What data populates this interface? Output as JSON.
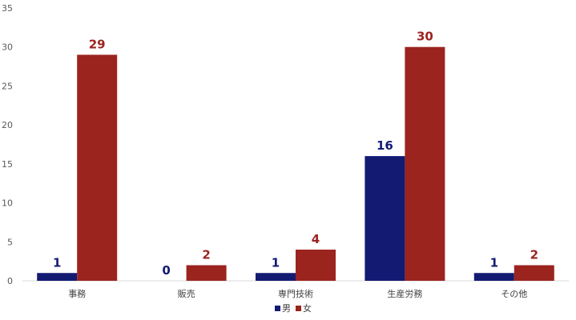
{
  "chart_data": {
    "type": "bar",
    "categories": [
      "事務",
      "販売",
      "専門技術",
      "生産労務",
      "その他"
    ],
    "series": [
      {
        "name": "男",
        "color": "#131a72",
        "values": [
          1,
          0,
          1,
          16,
          1
        ]
      },
      {
        "name": "女",
        "color": "#9b241f",
        "values": [
          29,
          2,
          4,
          30,
          2
        ]
      }
    ],
    "ylim": [
      0,
      35
    ],
    "yticks": [
      0,
      5,
      10,
      15,
      20,
      25,
      30,
      35
    ],
    "grid": false,
    "data_labels": true,
    "legend": "bottom-center"
  }
}
